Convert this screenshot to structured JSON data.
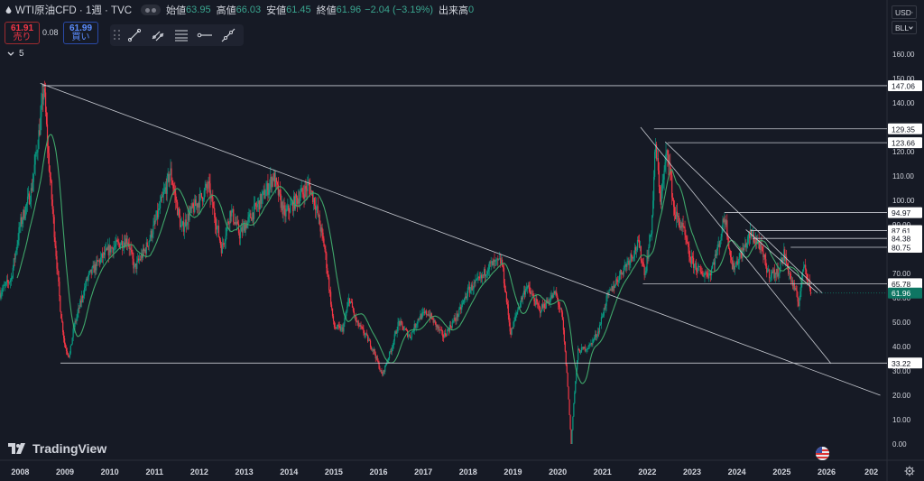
{
  "header": {
    "symbol": "WTI原油CFD · 1週 · TVC",
    "open_label": "始値",
    "open": "63.95",
    "high_label": "高値",
    "high": "66.03",
    "low_label": "安値",
    "low": "61.45",
    "close_label": "終値",
    "close": "61.96",
    "change": "−2.04 (−3.19%)",
    "volume_label": "出来高",
    "volume": "0"
  },
  "trade": {
    "sell_price": "61.91",
    "sell_label": "売り",
    "spread": "0.08",
    "buy_price": "61.99",
    "buy_label": "買い"
  },
  "indicators_collapsed_count": "5",
  "toolbar_icons": [
    "trend-line-icon",
    "parallel-lines-icon",
    "fib-lines-icon",
    "horizontal-ray-icon",
    "extended-line-icon"
  ],
  "currency_select": "USD",
  "unit_select": "BLL",
  "brand": "TradingView",
  "colors": {
    "background": "#161a25",
    "up": "#089981",
    "down": "#f23645",
    "ma": "#3fa66a",
    "drawing": "#c8cbd2",
    "current_price": "#0e7663"
  },
  "chart_data": {
    "type": "candlestick",
    "timeframe": "1W",
    "x_range": [
      2007.55,
      2027.35
    ],
    "ylim": [
      0,
      165
    ],
    "y_ticks": [
      0,
      10,
      20,
      30,
      40,
      50,
      60,
      70,
      80,
      90,
      100,
      110,
      120,
      130,
      140,
      150,
      160
    ],
    "x_ticks": [
      "2008",
      "2009",
      "2010",
      "2011",
      "2012",
      "2013",
      "2014",
      "2015",
      "2016",
      "2017",
      "2018",
      "2019",
      "2020",
      "2021",
      "2022",
      "2023",
      "2024",
      "2025",
      "2026",
      "202"
    ],
    "price_path": [
      [
        2007.55,
        62
      ],
      [
        2007.8,
        68
      ],
      [
        2008.0,
        90
      ],
      [
        2008.25,
        104
      ],
      [
        2008.45,
        132
      ],
      [
        2008.53,
        147
      ],
      [
        2008.62,
        120
      ],
      [
        2008.75,
        90
      ],
      [
        2008.9,
        55
      ],
      [
        2009.0,
        40
      ],
      [
        2009.1,
        36
      ],
      [
        2009.2,
        48
      ],
      [
        2009.5,
        68
      ],
      [
        2009.8,
        76
      ],
      [
        2010.0,
        80
      ],
      [
        2010.4,
        84
      ],
      [
        2010.55,
        72
      ],
      [
        2010.8,
        80
      ],
      [
        2011.0,
        90
      ],
      [
        2011.3,
        108
      ],
      [
        2011.35,
        112
      ],
      [
        2011.6,
        88
      ],
      [
        2011.8,
        95
      ],
      [
        2012.0,
        100
      ],
      [
        2012.2,
        106
      ],
      [
        2012.5,
        80
      ],
      [
        2012.7,
        96
      ],
      [
        2012.9,
        86
      ],
      [
        2013.2,
        95
      ],
      [
        2013.5,
        104
      ],
      [
        2013.65,
        110
      ],
      [
        2013.9,
        94
      ],
      [
        2014.2,
        101
      ],
      [
        2014.45,
        106
      ],
      [
        2014.6,
        98
      ],
      [
        2014.8,
        80
      ],
      [
        2015.0,
        48
      ],
      [
        2015.2,
        47
      ],
      [
        2015.35,
        60
      ],
      [
        2015.5,
        50
      ],
      [
        2015.7,
        45
      ],
      [
        2015.9,
        38
      ],
      [
        2016.08,
        28
      ],
      [
        2016.3,
        40
      ],
      [
        2016.45,
        50
      ],
      [
        2016.7,
        44
      ],
      [
        2016.9,
        52
      ],
      [
        2017.1,
        54
      ],
      [
        2017.45,
        44
      ],
      [
        2017.8,
        54
      ],
      [
        2018.0,
        63
      ],
      [
        2018.3,
        68
      ],
      [
        2018.45,
        73
      ],
      [
        2018.75,
        75
      ],
      [
        2018.95,
        45
      ],
      [
        2019.1,
        55
      ],
      [
        2019.3,
        65
      ],
      [
        2019.6,
        55
      ],
      [
        2019.95,
        62
      ],
      [
        2020.1,
        52
      ],
      [
        2020.22,
        25
      ],
      [
        2020.3,
        0
      ],
      [
        2020.35,
        15
      ],
      [
        2020.45,
        38
      ],
      [
        2020.7,
        40
      ],
      [
        2020.9,
        46
      ],
      [
        2021.1,
        60
      ],
      [
        2021.4,
        70
      ],
      [
        2021.8,
        82
      ],
      [
        2021.95,
        70
      ],
      [
        2022.1,
        90
      ],
      [
        2022.18,
        123
      ],
      [
        2022.3,
        100
      ],
      [
        2022.45,
        122
      ],
      [
        2022.6,
        95
      ],
      [
        2022.8,
        88
      ],
      [
        2022.95,
        76
      ],
      [
        2023.2,
        70
      ],
      [
        2023.4,
        70
      ],
      [
        2023.6,
        82
      ],
      [
        2023.73,
        94
      ],
      [
        2023.9,
        72
      ],
      [
        2024.1,
        78
      ],
      [
        2024.3,
        86
      ],
      [
        2024.5,
        82
      ],
      [
        2024.7,
        70
      ],
      [
        2024.9,
        70
      ],
      [
        2025.05,
        78
      ],
      [
        2025.2,
        68
      ],
      [
        2025.38,
        58
      ],
      [
        2025.5,
        75
      ],
      [
        2025.6,
        67
      ],
      [
        2025.65,
        62
      ]
    ],
    "moving_average_color": "#3fa66a",
    "horizontal_levels": [
      147.06,
      129.35,
      123.66,
      94.97,
      87.61,
      84.38,
      80.75,
      65.78,
      33.22
    ],
    "trendlines": [
      {
        "from": [
          2008.45,
          148
        ],
        "to": [
          2027.2,
          20
        ]
      },
      {
        "from": [
          2021.85,
          130
        ],
        "to": [
          2026.1,
          33
        ]
      },
      {
        "from": [
          2022.4,
          124
        ],
        "to": [
          2025.9,
          62
        ]
      },
      {
        "from": [
          2024.2,
          88
        ],
        "to": [
          2025.8,
          62
        ]
      }
    ],
    "current_price": 61.96
  }
}
